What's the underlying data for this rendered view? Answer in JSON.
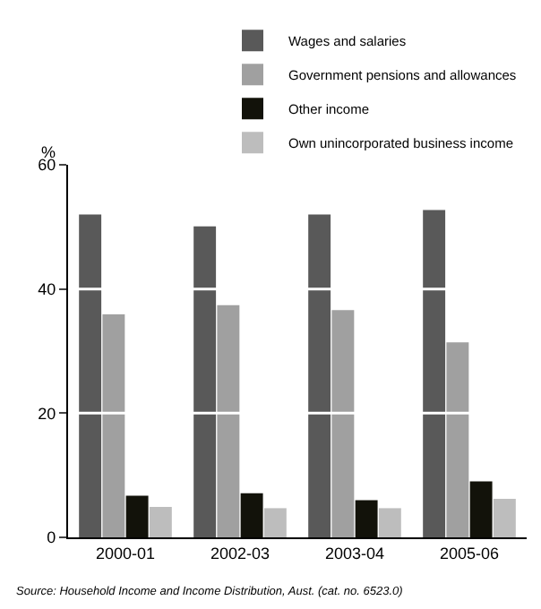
{
  "chart_data": {
    "type": "bar",
    "ylabel": "%",
    "categories": [
      "2000-01",
      "2002-03",
      "2003-04",
      "2005-06"
    ],
    "series": [
      {
        "name": "Wages and salaries",
        "color": "#595959",
        "values": [
          52.0,
          50.1,
          52.0,
          52.7
        ]
      },
      {
        "name": "Government pensions and allowances",
        "color": "#a0a0a0",
        "values": [
          35.9,
          37.4,
          36.6,
          31.4
        ]
      },
      {
        "name": "Other income",
        "color": "#12120a",
        "values": [
          6.7,
          7.1,
          6.0,
          9.0
        ]
      },
      {
        "name": "Own unincorporated business income",
        "color": "#bdbdbd",
        "values": [
          4.9,
          4.7,
          4.7,
          6.2
        ]
      }
    ],
    "ylim": [
      0,
      60
    ],
    "yticks": [
      0,
      20,
      40,
      60
    ],
    "grid": "y",
    "legend": "top right",
    "annotations": [
      "Source: Household Income and Income Distribution, Aust. (cat. no. 6523.0)"
    ]
  }
}
